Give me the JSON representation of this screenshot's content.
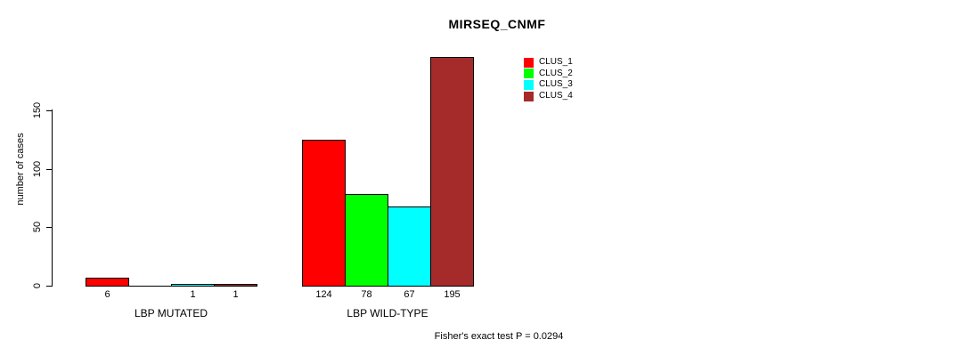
{
  "title": "MIRSEQ_CNMF",
  "chart_data": {
    "type": "bar",
    "title": "MIRSEQ_CNMF",
    "ylabel": "number of cases",
    "xlabel": "",
    "categories": [
      "LBP MUTATED",
      "LBP WILD-TYPE"
    ],
    "series": [
      {
        "name": "CLUS_1",
        "color": "#ff0000",
        "values": [
          6,
          124
        ]
      },
      {
        "name": "CLUS_2",
        "color": "#00ff00",
        "values": [
          0,
          78
        ]
      },
      {
        "name": "CLUS_3",
        "color": "#00ffff",
        "values": [
          1,
          67
        ]
      },
      {
        "name": "CLUS_4",
        "color": "#a52a2a",
        "values": [
          1,
          195
        ]
      }
    ],
    "bar_value_labels": [
      [
        "6",
        "",
        "1",
        "1"
      ],
      [
        "124",
        "78",
        "67",
        "195"
      ]
    ],
    "yticks": [
      0,
      50,
      100,
      150
    ],
    "ylim": [
      0,
      150
    ],
    "grid": false,
    "legend_position": "top-right",
    "legend_entries": [
      "CLUS_1",
      "CLUS_2",
      "CLUS_3",
      "CLUS_4"
    ],
    "annotation": "Fisher's exact test P = 0.0294"
  },
  "colors": {
    "axis": "#000000",
    "background": "#ffffff",
    "bar_border": "#000000"
  }
}
